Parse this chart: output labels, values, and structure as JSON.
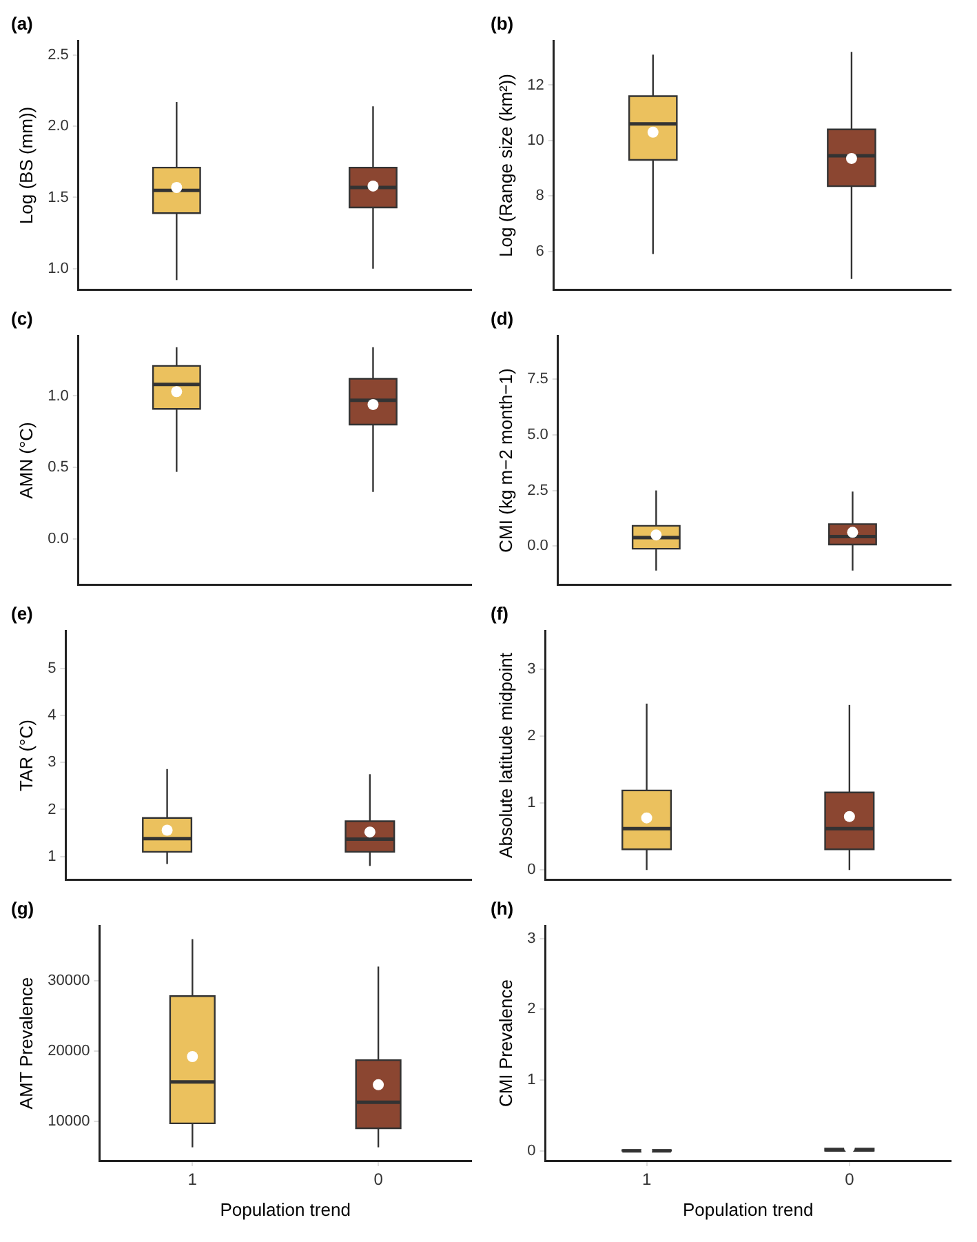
{
  "chart_data": [
    {
      "type": "box",
      "title": "(a)",
      "ylabel": "Log (BS (mm))",
      "categories": [
        "1",
        "0"
      ],
      "colors": [
        "#ebc15e",
        "#8b4631"
      ],
      "tick_labels": "y",
      "grid": false,
      "ylim": [
        0.85,
        2.6
      ],
      "yticks": [
        {
          "value": 1,
          "label": "1.0"
        },
        1.5,
        {
          "value": 2,
          "label": "2.0"
        },
        2.5
      ],
      "boxes": [
        {
          "low": 0.92,
          "q1": 1.39,
          "median": 1.55,
          "q3": 1.71,
          "high": 2.17,
          "mean": 1.57
        },
        {
          "low": 1.0,
          "q1": 1.43,
          "median": 1.57,
          "q3": 1.71,
          "high": 2.14,
          "mean": 1.58
        }
      ]
    },
    {
      "type": "box",
      "title": "(b)",
      "ylabel": "Log (Range size (km²))",
      "categories": [
        "1",
        "0"
      ],
      "colors": [
        "#ebc15e",
        "#8b4631"
      ],
      "tick_labels": "y",
      "grid": false,
      "ylim": [
        4.6,
        13.6
      ],
      "yticks": [
        6,
        8,
        10,
        12
      ],
      "boxes": [
        {
          "low": 5.9,
          "q1": 9.3,
          "median": 10.6,
          "q3": 11.6,
          "high": 13.1,
          "mean": 10.3
        },
        {
          "low": 5.0,
          "q1": 8.35,
          "median": 9.45,
          "q3": 10.4,
          "high": 13.2,
          "mean": 9.35
        }
      ]
    },
    {
      "type": "box",
      "title": "(c)",
      "ylabel": "AMN (°C)",
      "categories": [
        "1",
        "0"
      ],
      "colors": [
        "#ebc15e",
        "#8b4631"
      ],
      "tick_labels": "y",
      "grid": false,
      "ylim": [
        -0.32,
        1.42
      ],
      "yticks": [
        {
          "value": 0,
          "label": "0.0"
        },
        0.5,
        {
          "value": 1,
          "label": "1.0"
        }
      ],
      "boxes": [
        {
          "low": 0.47,
          "q1": 0.91,
          "median": 1.08,
          "q3": 1.21,
          "high": 1.34,
          "mean": 1.03
        },
        {
          "low": 0.33,
          "q1": 0.8,
          "median": 0.97,
          "q3": 1.12,
          "high": 1.34,
          "mean": 0.94
        }
      ]
    },
    {
      "type": "box",
      "title": "(d)",
      "ylabel": "CMI (kg m−2 month−1)",
      "categories": [
        "1",
        "0"
      ],
      "colors": [
        "#ebc15e",
        "#8b4631"
      ],
      "tick_labels": "y",
      "grid": false,
      "ylim": [
        -1.75,
        9.45
      ],
      "yticks": [
        {
          "value": 0,
          "label": "0.0"
        },
        2.5,
        {
          "value": 5,
          "label": "5.0"
        },
        7.5
      ],
      "boxes": [
        {
          "low": -1.1,
          "q1": -0.12,
          "median": 0.38,
          "q3": 0.91,
          "high": 2.5,
          "mean": 0.5
        },
        {
          "low": -1.1,
          "q1": 0.07,
          "median": 0.43,
          "q3": 0.99,
          "high": 2.45,
          "mean": 0.62
        }
      ]
    },
    {
      "type": "box",
      "title": "(e)",
      "ylabel": "TAR (°C)",
      "categories": [
        "1",
        "0"
      ],
      "colors": [
        "#ebc15e",
        "#8b4631"
      ],
      "tick_labels": "y",
      "grid": false,
      "ylim": [
        0.5,
        5.8
      ],
      "yticks": [
        1,
        2,
        3,
        4,
        5
      ],
      "boxes": [
        {
          "low": 0.84,
          "q1": 1.1,
          "median": 1.38,
          "q3": 1.82,
          "high": 2.86,
          "mean": 1.56
        },
        {
          "low": 0.8,
          "q1": 1.1,
          "median": 1.37,
          "q3": 1.75,
          "high": 2.75,
          "mean": 1.52
        }
      ]
    },
    {
      "type": "box",
      "title": "(f)",
      "ylabel": "Absolute latitude midpoint",
      "categories": [
        "1",
        "0"
      ],
      "colors": [
        "#ebc15e",
        "#8b4631"
      ],
      "tick_labels": "y",
      "grid": false,
      "ylim": [
        -0.15,
        3.58
      ],
      "yticks": [
        0,
        1,
        2,
        3
      ],
      "boxes": [
        {
          "low": 0,
          "q1": 0.31,
          "median": 0.62,
          "q3": 1.19,
          "high": 2.49,
          "mean": 0.78
        },
        {
          "low": 0,
          "q1": 0.31,
          "median": 0.62,
          "q3": 1.16,
          "high": 2.47,
          "mean": 0.8
        }
      ]
    },
    {
      "type": "box",
      "title": "(g)",
      "ylabel": "AMT Prevalence",
      "xlabel": "Population trend",
      "categories": [
        "1",
        "0"
      ],
      "colors": [
        "#ebc15e",
        "#8b4631"
      ],
      "grid": false,
      "ylim": [
        4400,
        37800
      ],
      "yticks": [
        10000,
        20000,
        30000
      ],
      "boxes": [
        {
          "low": 6300,
          "q1": 9700,
          "median": 15600,
          "q3": 27800,
          "high": 35900,
          "mean": 19200
        },
        {
          "low": 6300,
          "q1": 9000,
          "median": 12700,
          "q3": 18700,
          "high": 32000,
          "mean": 15200
        }
      ]
    },
    {
      "type": "box",
      "title": "(h)",
      "ylabel": "CMI Prevalence",
      "xlabel": "Population trend",
      "categories": [
        "1",
        "0"
      ],
      "colors": [
        "#ebc15e",
        "#8b4631"
      ],
      "grid": false,
      "ylim": [
        -0.14,
        3.18
      ],
      "yticks": [
        0,
        1,
        2,
        3
      ],
      "boxes": [
        {
          "low": 0,
          "q1": 0,
          "median": 0,
          "q3": 0.01,
          "high": 0.02,
          "mean": 0
        },
        {
          "low": 0,
          "q1": 0,
          "median": 0.01,
          "q3": 0.03,
          "high": 0.08,
          "mean": 0.05
        }
      ]
    }
  ]
}
